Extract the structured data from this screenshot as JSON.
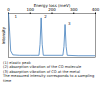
{
  "chart_data": {
    "type": "line",
    "x_label": "Energy loss (meV)",
    "y_label": "Intensity",
    "x": [
      0,
      5,
      10,
      20,
      50,
      100,
      140,
      145,
      150,
      155,
      160,
      200,
      250,
      255,
      260,
      265,
      270,
      320,
      400
    ],
    "values": [
      1.0,
      0.6,
      0.15,
      0.06,
      0.05,
      0.05,
      0.05,
      0.3,
      0.9,
      0.3,
      0.05,
      0.05,
      0.05,
      0.25,
      0.75,
      0.25,
      0.05,
      0.04,
      0.04
    ],
    "color": "#2a6fb5",
    "xlim": [
      0,
      400
    ],
    "xticks": [
      0,
      100,
      200,
      300,
      400
    ],
    "ylim": [
      0,
      1
    ],
    "tick_labels": "x",
    "annotations": [
      {
        "x": 14,
        "y": 0.9,
        "text": "1"
      },
      {
        "x": 150,
        "y": 0.9,
        "text": "2"
      },
      {
        "x": 260,
        "y": 0.75,
        "text": "3"
      }
    ],
    "notes": [
      "(1) elastic peak",
      "(2) absorption vibration of the CO molecule",
      "(3) absorption vibration of CO at the metal",
      "The measured intensity corresponds to a sampling time"
    ]
  }
}
